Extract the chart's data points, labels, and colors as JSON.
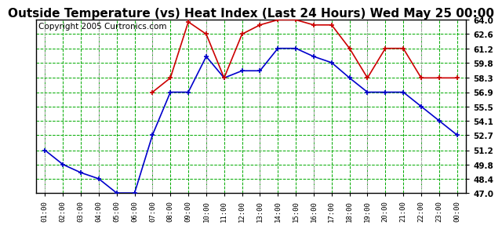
{
  "title": "Outside Temperature (vs) Heat Index (Last 24 Hours) Wed May 25 00:00",
  "copyright": "Copyright 2005 Curtronics.com",
  "x_labels": [
    "01:00",
    "02:00",
    "03:00",
    "04:00",
    "05:00",
    "06:00",
    "07:00",
    "08:00",
    "09:00",
    "10:00",
    "11:00",
    "12:00",
    "13:00",
    "14:00",
    "15:00",
    "16:00",
    "17:00",
    "18:00",
    "19:00",
    "20:00",
    "21:00",
    "22:00",
    "23:00",
    "00:00"
  ],
  "blue_data": [
    51.2,
    49.8,
    49.0,
    48.4,
    47.0,
    47.0,
    52.7,
    56.9,
    56.9,
    60.4,
    58.3,
    59.0,
    59.0,
    61.2,
    61.2,
    60.4,
    59.8,
    58.3,
    56.9,
    56.9,
    56.9,
    55.5,
    54.1,
    52.7
  ],
  "red_data": [
    null,
    null,
    null,
    null,
    null,
    null,
    56.9,
    58.3,
    63.8,
    62.6,
    58.3,
    62.6,
    63.5,
    64.0,
    64.0,
    63.5,
    63.5,
    61.2,
    58.3,
    61.2,
    61.2,
    58.3,
    58.3,
    58.3
  ],
  "ylim": [
    47.0,
    64.0
  ],
  "yticks": [
    47.0,
    48.4,
    49.8,
    51.2,
    52.7,
    54.1,
    55.5,
    56.9,
    58.3,
    59.8,
    61.2,
    62.6,
    64.0
  ],
  "bg_color": "#ffffff",
  "blue_color": "#0000cc",
  "red_color": "#cc0000",
  "green_color": "#00aa00",
  "gray_dash_color": "#aaaaaa",
  "title_fontsize": 11,
  "copyright_fontsize": 7.5,
  "dashed_x_positions": [
    0,
    3,
    6,
    9,
    12,
    15,
    18,
    21
  ]
}
